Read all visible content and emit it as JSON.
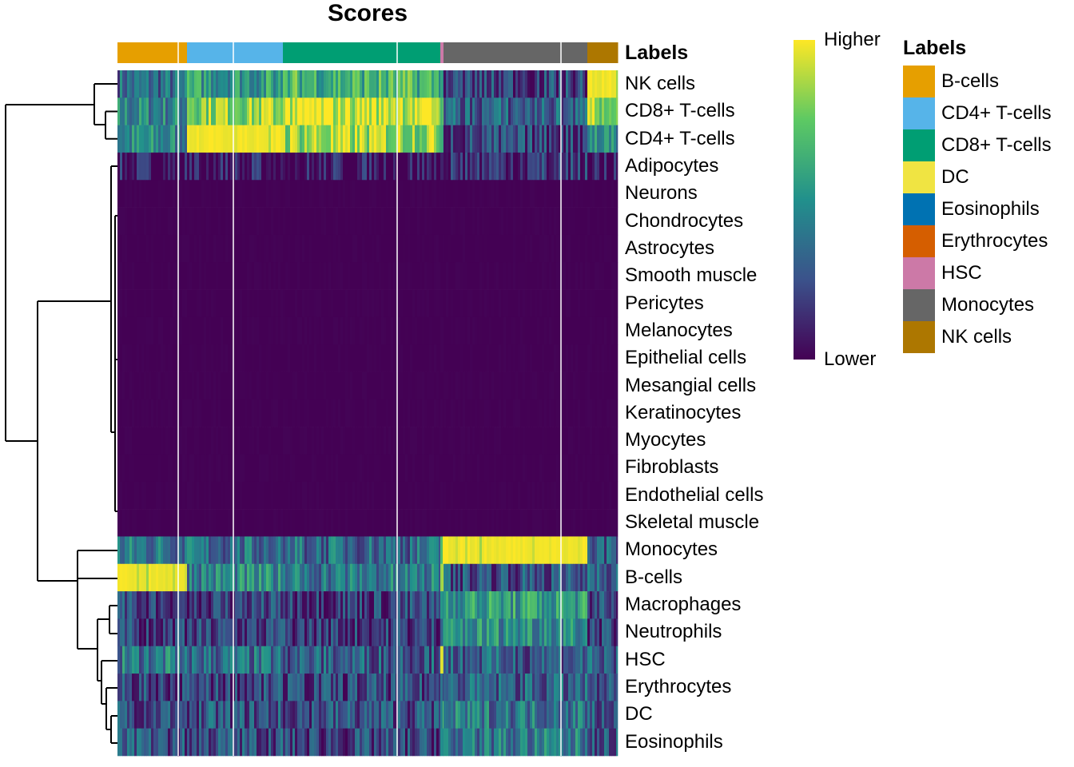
{
  "chart_data": {
    "type": "heatmap",
    "title": "Scores",
    "colorbar": {
      "high_label": "Higher",
      "low_label": "Lower",
      "colormap": "viridis"
    },
    "annotation": {
      "title": "Labels",
      "legend": [
        {
          "label": "B-cells",
          "color": "#E69F00"
        },
        {
          "label": "CD4+ T-cells",
          "color": "#56B4E9"
        },
        {
          "label": "CD8+ T-cells",
          "color": "#009E73"
        },
        {
          "label": "DC",
          "color": "#F0E442"
        },
        {
          "label": "Eosinophils",
          "color": "#0072B2"
        },
        {
          "label": "Erythrocytes",
          "color": "#D55E00"
        },
        {
          "label": "HSC",
          "color": "#CC79A7"
        },
        {
          "label": "Monocytes",
          "color": "#666666"
        },
        {
          "label": "NK cells",
          "color": "#AD7700"
        }
      ]
    },
    "column_groups": [
      {
        "label": "B-cells",
        "approx_cells": 87
      },
      {
        "label": "CD4+ T-cells",
        "approx_cells": 120
      },
      {
        "label": "CD8+ T-cells",
        "approx_cells": 197
      },
      {
        "label": "HSC",
        "approx_cells": 4
      },
      {
        "label": "Monocytes",
        "approx_cells": 180
      },
      {
        "label": "NK cells",
        "approx_cells": 38
      }
    ],
    "rows": [
      "NK cells",
      "CD8+ T-cells",
      "CD4+ T-cells",
      "Adipocytes",
      "Neurons",
      "Chondrocytes",
      "Astrocytes",
      "Smooth muscle",
      "Pericytes",
      "Melanocytes",
      "Epithelial cells",
      "Mesangial cells",
      "Keratinocytes",
      "Myocytes",
      "Fibroblasts",
      "Endothelial cells",
      "Skeletal muscle",
      "Monocytes",
      "B-cells",
      "Macrophages",
      "Neutrophils",
      "HSC",
      "Erythrocytes",
      "DC",
      "Eosinophils"
    ],
    "mean_relative_score_by_group": [
      [
        0.35,
        0.55,
        0.65,
        0.5,
        0.2,
        1.0
      ],
      [
        0.45,
        0.85,
        0.95,
        0.6,
        0.3,
        0.8
      ],
      [
        0.45,
        1.0,
        0.85,
        0.5,
        0.2,
        0.5
      ],
      [
        0.05,
        0.05,
        0.05,
        0.1,
        0.15,
        0.05
      ],
      [
        0,
        0,
        0,
        0,
        0,
        0
      ],
      [
        0,
        0,
        0,
        0,
        0,
        0
      ],
      [
        0,
        0,
        0,
        0,
        0,
        0
      ],
      [
        0,
        0,
        0,
        0,
        0,
        0
      ],
      [
        0,
        0,
        0,
        0,
        0,
        0
      ],
      [
        0,
        0,
        0,
        0,
        0,
        0
      ],
      [
        0,
        0,
        0,
        0,
        0,
        0
      ],
      [
        0,
        0,
        0,
        0,
        0,
        0
      ],
      [
        0,
        0,
        0,
        0,
        0,
        0
      ],
      [
        0,
        0,
        0,
        0,
        0,
        0
      ],
      [
        0,
        0,
        0,
        0,
        0,
        0
      ],
      [
        0,
        0,
        0,
        0,
        0,
        0
      ],
      [
        0,
        0,
        0,
        0,
        0,
        0
      ],
      [
        0.4,
        0.35,
        0.35,
        0.9,
        1.0,
        0.3
      ],
      [
        1.0,
        0.45,
        0.4,
        0.8,
        0.25,
        0.3
      ],
      [
        0.2,
        0.2,
        0.2,
        0.5,
        0.55,
        0.2
      ],
      [
        0.18,
        0.18,
        0.18,
        0.5,
        0.5,
        0.18
      ],
      [
        0.4,
        0.35,
        0.3,
        0.8,
        0.3,
        0.3
      ],
      [
        0.2,
        0.2,
        0.2,
        0.4,
        0.3,
        0.2
      ],
      [
        0.25,
        0.25,
        0.25,
        0.5,
        0.4,
        0.25
      ],
      [
        0.25,
        0.25,
        0.2,
        0.45,
        0.4,
        0.25
      ]
    ]
  }
}
